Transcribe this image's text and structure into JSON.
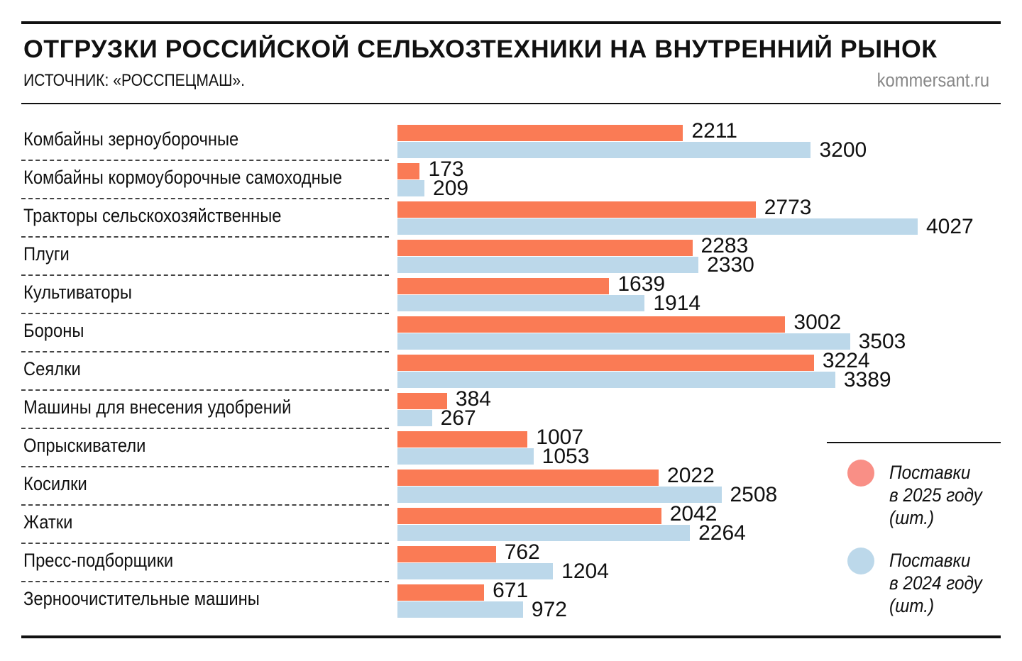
{
  "header": {
    "title": "ОТГРУЗКИ РОССИЙСКОЙ СЕЛЬХОЗТЕХНИКИ НА ВНУТРЕННИЙ РЫНОК",
    "source": "ИСТОЧНИК: «РОССПЕЦМАШ».",
    "site": "kommersant.ru"
  },
  "chart_data": {
    "type": "bar",
    "orientation": "horizontal",
    "title": "ОТГРУЗКИ РОССИЙСКОЙ СЕЛЬХОЗТЕХНИКИ НА ВНУТРЕННИЙ РЫНОК",
    "categories": [
      "Комбайны зерноуборочные",
      "Комбайны кормоуборочные самоходные",
      "Тракторы сельскохозяйственные",
      "Плуги",
      "Культиваторы",
      "Бороны",
      "Сеялки",
      "Машины для внесения удобрений",
      "Опрыскиватели",
      "Косилки",
      "Жатки",
      "Пресс-подборщики",
      "Зерноочистительные машины"
    ],
    "series": [
      {
        "name": "Поставки в 2025 году (шт.)",
        "color": "#fa7b55",
        "values": [
          2211,
          173,
          2773,
          2283,
          1639,
          3002,
          3224,
          384,
          1007,
          2022,
          2042,
          762,
          671
        ]
      },
      {
        "name": "Поставки в 2024 году (шт.)",
        "color": "#bcd8ea",
        "values": [
          3200,
          209,
          4027,
          2330,
          1914,
          3503,
          3389,
          267,
          1053,
          2508,
          2264,
          1204,
          972
        ]
      }
    ],
    "xlim": [
      0,
      4027
    ],
    "legend_position": "right"
  },
  "legend": [
    {
      "lines": [
        "Поставки",
        "в 2025 году",
        "(шт.)"
      ],
      "color": "#f98f86"
    },
    {
      "lines": [
        "Поставки",
        "в 2024 году",
        "(шт.)"
      ],
      "color": "#bcd8ea"
    }
  ]
}
